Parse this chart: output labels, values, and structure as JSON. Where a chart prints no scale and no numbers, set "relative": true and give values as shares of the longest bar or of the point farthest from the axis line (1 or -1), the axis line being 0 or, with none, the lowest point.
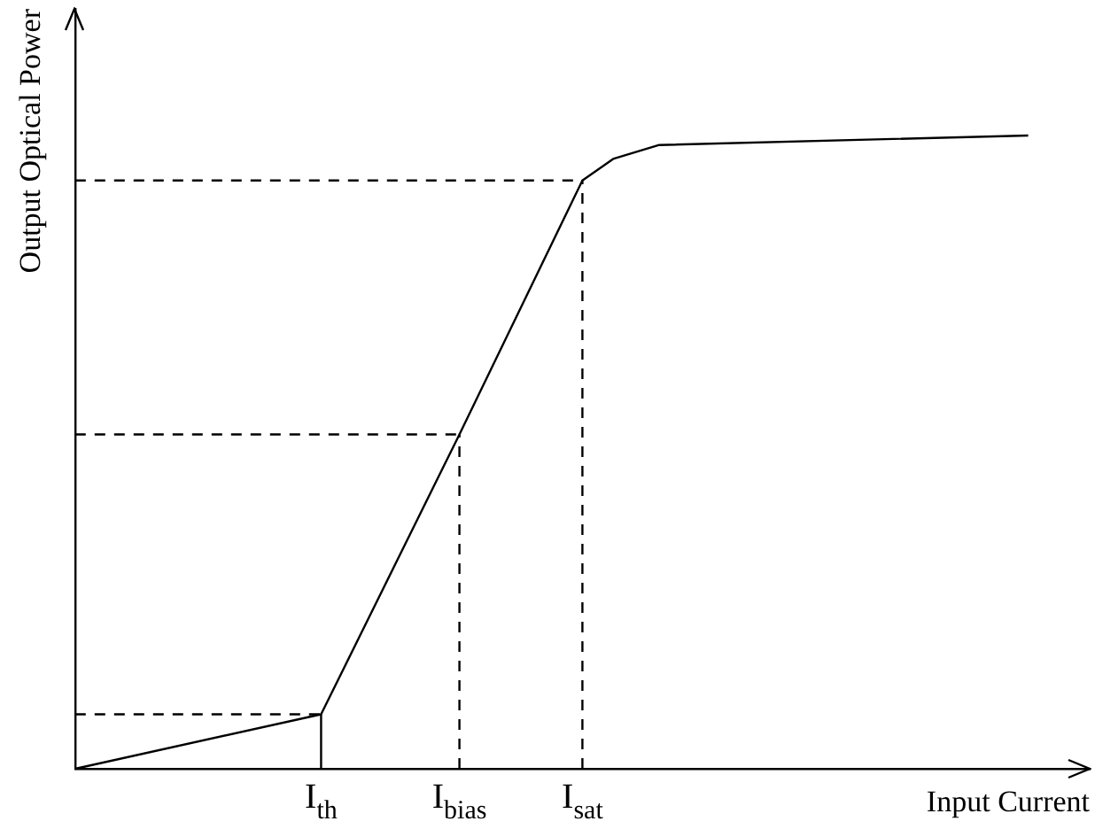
{
  "chart_data": {
    "type": "line",
    "relative": true,
    "xlabel": "Input Current",
    "ylabel": "Output Optical Power",
    "categories": [
      null,
      null,
      null,
      null,
      null,
      null,
      null,
      null,
      null,
      null,
      null,
      null,
      null,
      null,
      null,
      null,
      "I$_{th}$",
      null,
      null,
      null,
      null,
      null,
      null,
      null,
      null,
      "I$_{bias}$",
      null,
      null,
      null,
      null,
      null,
      null,
      null,
      "I$_{sat}$",
      null,
      null,
      null,
      null,
      null,
      null,
      null,
      null,
      null,
      null,
      null,
      null,
      null,
      null,
      null,
      null,
      null,
      null,
      null,
      null,
      null,
      null,
      null,
      null,
      null,
      null,
      null,
      null,
      null,
      null,
      null,
      null,
      null
    ],
    "grid": false,
    "legend": false,
    "marker": "none",
    "line_style": "solid",
    "series": [
      {
        "color": "#000000",
        "values": [
          0,
          null,
          null,
          null,
          null,
          null,
          null,
          null,
          null,
          null,
          null,
          null,
          null,
          null,
          null,
          null,
          0.086,
          null,
          null,
          null,
          null,
          null,
          null,
          null,
          null,
          0.528,
          null,
          null,
          null,
          null,
          null,
          null,
          null,
          0.929,
          null,
          0.963,
          null,
          null,
          0.985,
          null,
          null,
          null,
          null,
          null,
          null,
          null,
          null,
          null,
          null,
          null,
          null,
          null,
          null,
          null,
          null,
          null,
          null,
          null,
          null,
          null,
          null,
          null,
          1,
          null,
          null,
          null,
          null
        ]
      }
    ],
    "ref_lines": [
      {
        "axis": "y",
        "value": 0.086,
        "line_style": "dashed",
        "color": "#000000"
      },
      {
        "axis": "x",
        "value": "I$_{th}$",
        "line_style": "solid",
        "color": "#000000"
      },
      {
        "axis": "y",
        "value": 0.528,
        "line_style": "dashed",
        "color": "#000000"
      },
      {
        "axis": "x",
        "value": "I$_{bias}$",
        "line_style": "dashed",
        "color": "#000000"
      },
      {
        "axis": "y",
        "value": 0.929,
        "line_style": "dashed",
        "color": "#000000"
      },
      {
        "axis": "x",
        "value": "I$_{sat}$",
        "line_style": "dashed",
        "color": "#000000"
      }
    ]
  }
}
